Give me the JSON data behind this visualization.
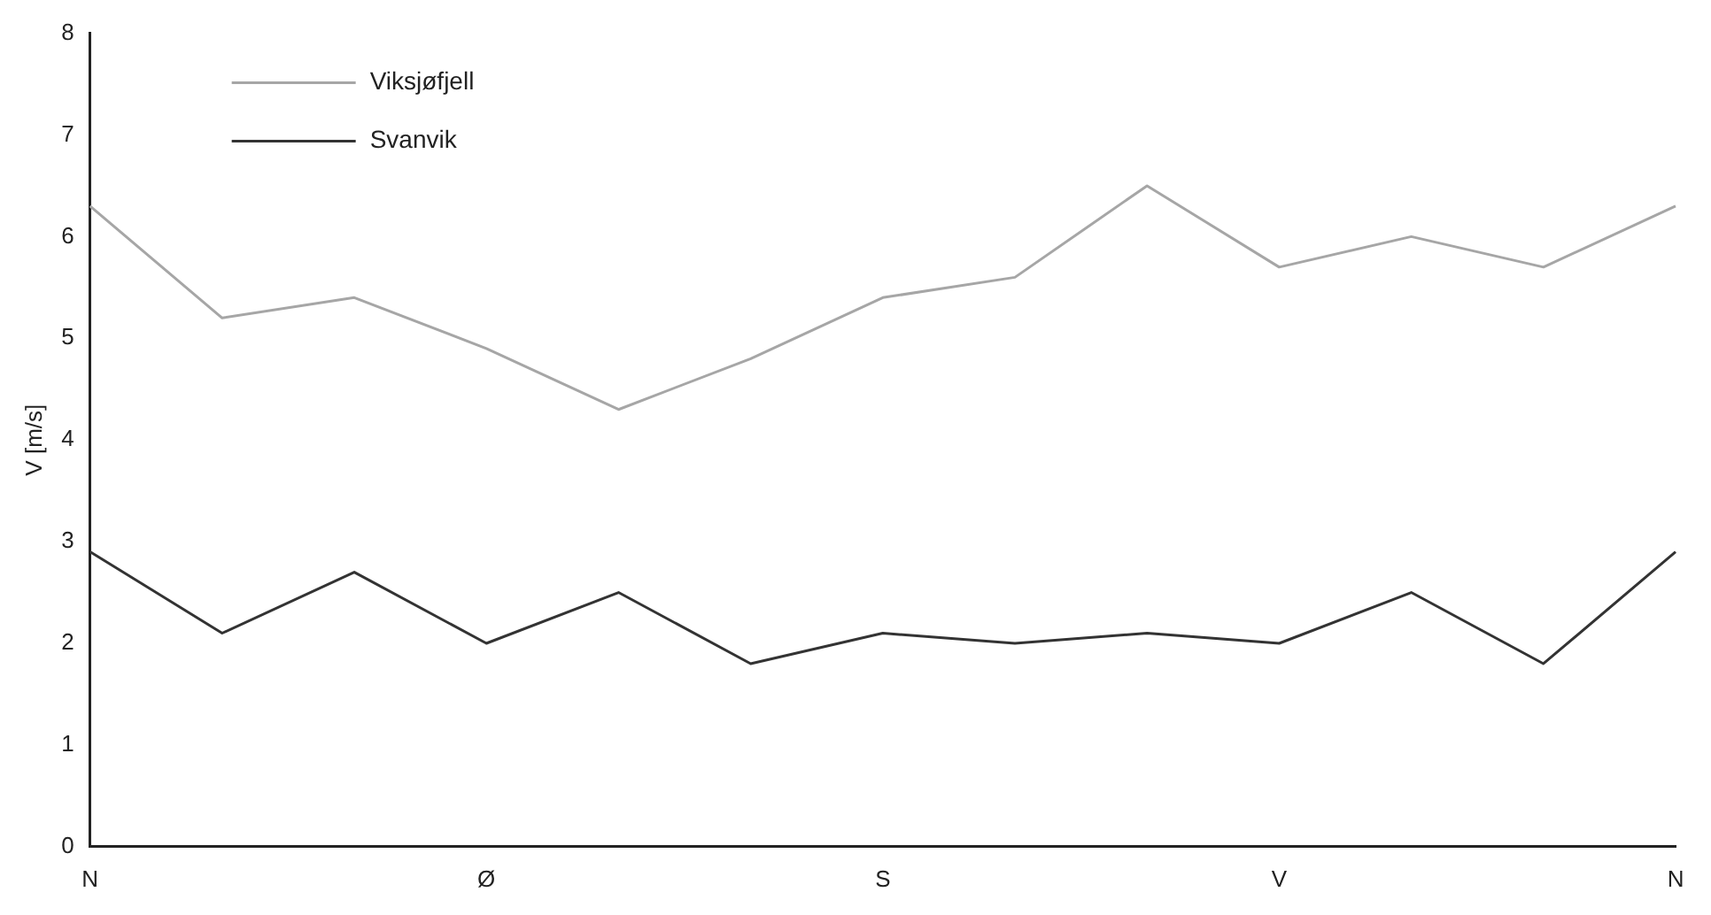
{
  "chart_data": {
    "type": "line",
    "ylabel": "V [m/s]",
    "categories": [
      "N",
      null,
      null,
      "Ø",
      null,
      null,
      "S",
      null,
      null,
      "V",
      null,
      null,
      "N"
    ],
    "series": [
      {
        "name": "Viksjøfjell",
        "color": "#a6a6a6",
        "values": [
          6.3,
          5.2,
          5.4,
          4.9,
          4.3,
          4.8,
          5.4,
          5.6,
          6.5,
          5.7,
          6.0,
          5.7,
          6.3
        ]
      },
      {
        "name": "Svanvik",
        "color": "#333333",
        "values": [
          2.9,
          2.1,
          2.7,
          2.0,
          2.5,
          1.8,
          2.1,
          2.0,
          2.1,
          2.0,
          2.5,
          1.8,
          2.9
        ]
      }
    ],
    "ylim": [
      0,
      8
    ],
    "yticks": [
      0,
      1,
      2,
      3,
      4,
      5,
      6,
      7,
      8
    ],
    "grid": false,
    "legend": "top left",
    "marker": "none",
    "line_style": "solid"
  }
}
